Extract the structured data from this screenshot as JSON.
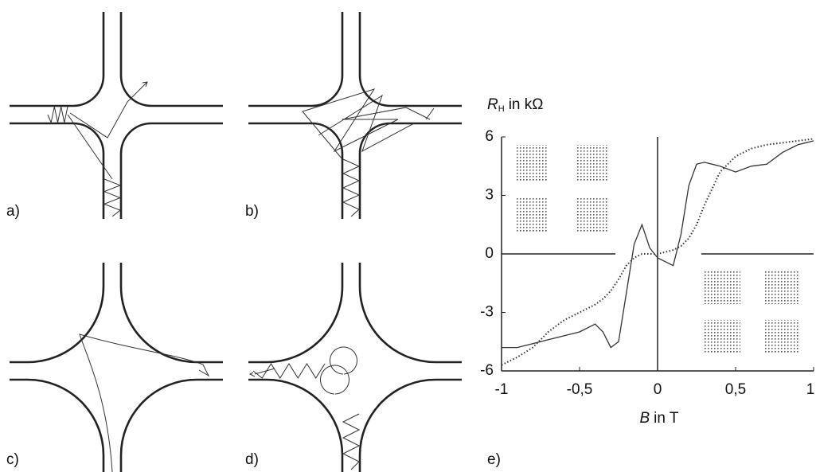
{
  "panels": [
    "a)",
    "b)",
    "c)",
    "d)"
  ],
  "chart_data": {
    "type": "line",
    "panel_label": "e)",
    "y_label": {
      "symbol": "R",
      "subscript": "H",
      "unit": "in kΩ"
    },
    "x_label": {
      "symbol": "B",
      "unit": "in T"
    },
    "x": [
      -1,
      -0.9,
      -0.8,
      -0.7,
      -0.6,
      -0.5,
      -0.4,
      -0.35,
      -0.3,
      -0.25,
      -0.2,
      -0.15,
      -0.1,
      -0.05,
      0,
      0.05,
      0.1,
      0.15,
      0.2,
      0.25,
      0.3,
      0.4,
      0.5,
      0.6,
      0.7,
      0.8,
      0.9,
      1
    ],
    "series": [
      {
        "color": "#333333",
        "style": "solid",
        "values": [
          -4.8,
          -4.8,
          -4.6,
          -4.4,
          -4.2,
          -4.0,
          -3.6,
          -4.0,
          -4.8,
          -4.5,
          -2,
          0.5,
          1.5,
          0.3,
          -0.2,
          -0.4,
          -0.6,
          1,
          3.5,
          4.6,
          4.7,
          4.5,
          4.2,
          4.5,
          4.6,
          5.2,
          5.6,
          5.8
        ]
      },
      {
        "color": "#333333",
        "style": "dotted",
        "values": [
          -5.7,
          -5.3,
          -4.8,
          -4.0,
          -3.4,
          -3.0,
          -2.6,
          -2.3,
          -1.9,
          -1.3,
          -0.6,
          -0.2,
          0,
          0,
          0,
          0.1,
          0.2,
          0.4,
          0.8,
          1.5,
          2.5,
          4.2,
          5.0,
          5.4,
          5.6,
          5.7,
          5.8,
          5.9
        ]
      }
    ],
    "xlim": [
      -1,
      1
    ],
    "ylim": [
      -6,
      6
    ],
    "xticks": [
      -1,
      {
        "value": -0.5,
        "label": "-0,5"
      },
      0,
      {
        "value": 0.5,
        "label": "0,5"
      },
      1
    ],
    "yticks": [
      6,
      3,
      0,
      -3,
      -6
    ]
  }
}
